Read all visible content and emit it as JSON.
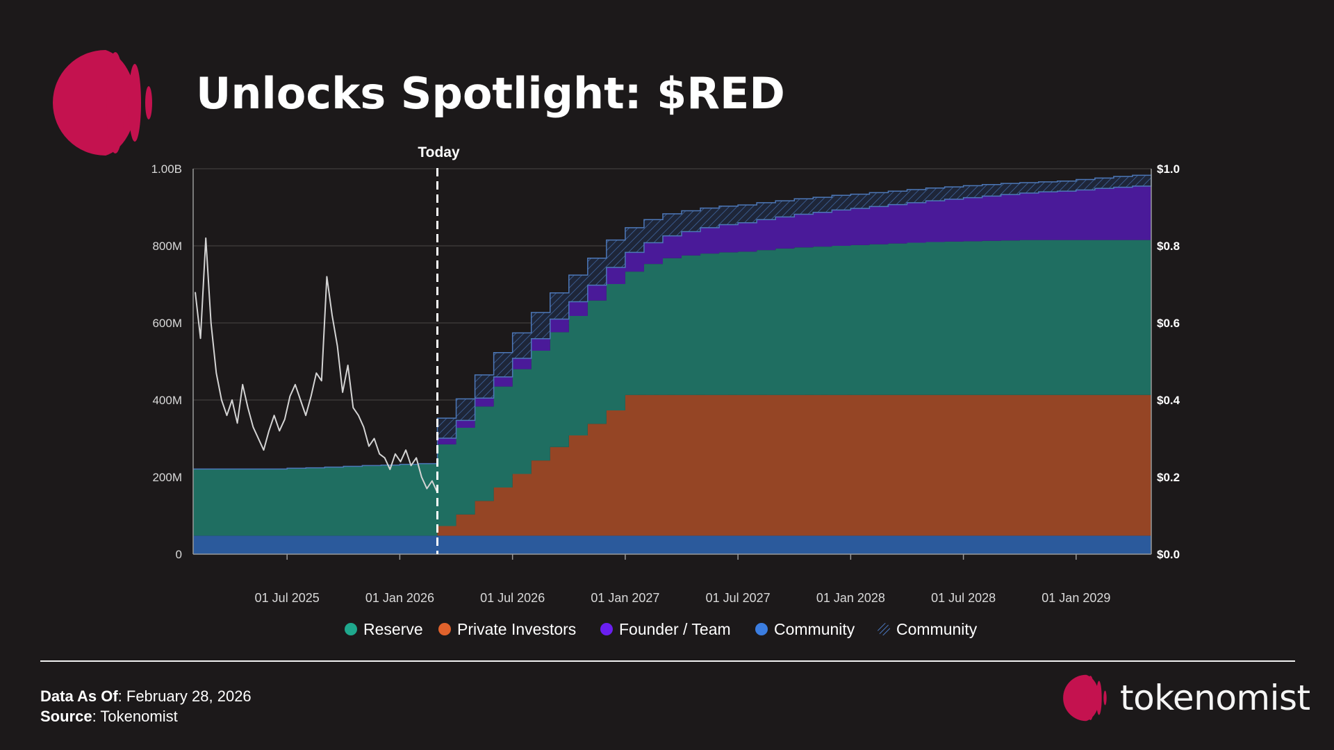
{
  "header": {
    "title": "Unlocks Spotlight: $RED"
  },
  "colors": {
    "accent": "#c4124f",
    "reserve": "#1f6e61",
    "private_investors": "#954525",
    "founder_team": "#4a1a99",
    "community": "#2b5a9c",
    "community_hatch": "#1f2a40",
    "price_line": "#d4d4d4"
  },
  "chart_data": {
    "type": "area",
    "title": "Unlocks Spotlight: $RED",
    "today_label": "Today",
    "x": [
      "2025-02",
      "2025-03",
      "2025-04",
      "2025-05",
      "2025-06",
      "2025-07",
      "2025-08",
      "2025-09",
      "2025-10",
      "2025-11",
      "2025-12",
      "2026-01",
      "2026-02",
      "2026-03",
      "2026-04",
      "2026-05",
      "2026-06",
      "2026-07",
      "2026-08",
      "2026-09",
      "2026-10",
      "2026-11",
      "2026-12",
      "2027-01",
      "2027-02",
      "2027-03",
      "2027-04",
      "2027-05",
      "2027-06",
      "2027-07",
      "2027-08",
      "2027-09",
      "2027-10",
      "2027-11",
      "2027-12",
      "2028-01",
      "2028-02",
      "2028-03",
      "2028-04",
      "2028-05",
      "2028-06",
      "2028-07",
      "2028-08",
      "2028-09",
      "2028-10",
      "2028-11",
      "2028-12",
      "2029-01",
      "2029-02",
      "2029-03",
      "2029-04",
      "2029-05"
    ],
    "x_ticks": [
      {
        "date": "2025-07",
        "label": "01 Jul 2025"
      },
      {
        "date": "2026-01",
        "label": "01 Jan 2026"
      },
      {
        "date": "2026-07",
        "label": "01 Jul 2026"
      },
      {
        "date": "2027-01",
        "label": "01 Jan 2027"
      },
      {
        "date": "2027-07",
        "label": "01 Jul 2027"
      },
      {
        "date": "2028-01",
        "label": "01 Jan 2028"
      },
      {
        "date": "2028-07",
        "label": "01 Jul 2028"
      },
      {
        "date": "2029-01",
        "label": "01 Jan 2029"
      }
    ],
    "today": "2026-03",
    "y_left": {
      "min": 0,
      "max": 1000,
      "unit": "M",
      "ticks": [
        {
          "v": 0,
          "label": "0"
        },
        {
          "v": 200,
          "label": "200M"
        },
        {
          "v": 400,
          "label": "400M"
        },
        {
          "v": 600,
          "label": "600M"
        },
        {
          "v": 800,
          "label": "800M"
        },
        {
          "v": 1000,
          "label": "1.00B"
        }
      ]
    },
    "y_right": {
      "min": 0,
      "max": 1.0,
      "ticks": [
        {
          "v": 0,
          "label": "$0.0"
        },
        {
          "v": 0.2,
          "label": "$0.2"
        },
        {
          "v": 0.4,
          "label": "$0.4"
        },
        {
          "v": 0.6,
          "label": "$0.6"
        },
        {
          "v": 0.8,
          "label": "$0.8"
        },
        {
          "v": 1.0,
          "label": "$1.0"
        }
      ]
    },
    "series": [
      {
        "name": "Community",
        "key": "community",
        "style": "solid",
        "values": [
          48,
          48,
          48,
          48,
          48,
          48,
          48,
          48,
          48,
          48,
          48,
          48,
          48,
          48,
          48,
          48,
          48,
          48,
          48,
          48,
          48,
          48,
          48,
          48,
          48,
          48,
          48,
          48,
          48,
          48,
          48,
          48,
          48,
          48,
          48,
          48,
          48,
          48,
          48,
          48,
          48,
          48,
          48,
          48,
          48,
          48,
          48,
          48,
          48,
          48,
          48,
          48
        ]
      },
      {
        "name": "Private Investors",
        "key": "private_investors",
        "style": "solid",
        "values": [
          0,
          0,
          0,
          0,
          0,
          0,
          0,
          0,
          0,
          0,
          0,
          0,
          0,
          25,
          55,
          90,
          125,
          160,
          195,
          230,
          260,
          290,
          325,
          365,
          365,
          365,
          365,
          365,
          365,
          365,
          365,
          365,
          365,
          365,
          365,
          365,
          365,
          365,
          365,
          365,
          365,
          365,
          365,
          365,
          365,
          365,
          365,
          365,
          365,
          365,
          365,
          365
        ]
      },
      {
        "name": "Reserve",
        "key": "reserve",
        "style": "solid",
        "values": [
          173,
          173,
          173,
          173,
          173,
          175,
          176,
          178,
          180,
          182,
          183,
          185,
          187,
          212,
          225,
          245,
          262,
          272,
          285,
          298,
          310,
          320,
          328,
          320,
          340,
          355,
          362,
          367,
          370,
          372,
          376,
          380,
          383,
          385,
          387,
          389,
          391,
          393,
          395,
          397,
          398,
          399,
          400,
          401,
          402,
          402,
          402,
          402,
          402,
          402,
          402,
          402
        ]
      },
      {
        "name": "Founder / Team",
        "key": "founder_team",
        "style": "solid",
        "values": [
          0,
          0,
          0,
          0,
          0,
          0,
          0,
          0,
          0,
          0,
          0,
          0,
          0,
          16,
          19,
          22,
          25,
          28,
          31,
          34,
          37,
          40,
          43,
          50,
          55,
          58,
          62,
          67,
          72,
          75,
          79,
          82,
          86,
          89,
          93,
          95,
          98,
          101,
          104,
          107,
          110,
          113,
          116,
          119,
          122,
          125,
          127,
          130,
          134,
          137,
          140,
          143
        ]
      },
      {
        "name": "Community",
        "key": "community_hatch",
        "style": "hatched",
        "values": [
          0,
          0,
          0,
          0,
          0,
          0,
          0,
          0,
          0,
          0,
          0,
          0,
          0,
          52,
          56,
          60,
          63,
          66,
          68,
          68,
          69,
          70,
          71,
          64,
          60,
          57,
          54,
          51,
          48,
          46,
          44,
          42,
          40,
          39,
          38,
          37,
          36,
          35,
          34,
          33,
          32,
          31,
          30,
          29,
          27,
          26,
          26,
          27,
          27,
          28,
          28,
          28
        ]
      }
    ],
    "price": {
      "name": "$RED price",
      "unit": "USD",
      "values": [
        0.68,
        0.56,
        0.82,
        0.6,
        0.47,
        0.4,
        0.36,
        0.4,
        0.34,
        0.44,
        0.38,
        0.33,
        0.3,
        0.27,
        0.32,
        0.36,
        0.32,
        0.35,
        0.41,
        0.44,
        0.4,
        0.36,
        0.41,
        0.47,
        0.45,
        0.72,
        0.62,
        0.54,
        0.42,
        0.49,
        0.38,
        0.36,
        0.33,
        0.28,
        0.3,
        0.26,
        0.25,
        0.22,
        0.26,
        0.24,
        0.27,
        0.23,
        0.25,
        0.2,
        0.17,
        0.19,
        0.16
      ]
    },
    "legend": [
      {
        "label": "Reserve",
        "key": "reserve",
        "style": "dot"
      },
      {
        "label": "Private Investors",
        "key": "private_investors",
        "style": "dot"
      },
      {
        "label": "Founder / Team",
        "key": "founder_team",
        "style": "dot"
      },
      {
        "label": "Community",
        "key": "community",
        "style": "dot"
      },
      {
        "label": "Community",
        "key": "community_hatch",
        "style": "hatch"
      }
    ],
    "watermark": "tokenomist"
  },
  "footer": {
    "date_label": "Data As Of",
    "date_value": ": February 28, 2026",
    "source_label": "Source",
    "source_value": ": Tokenomist",
    "brand": "tokenomist"
  }
}
